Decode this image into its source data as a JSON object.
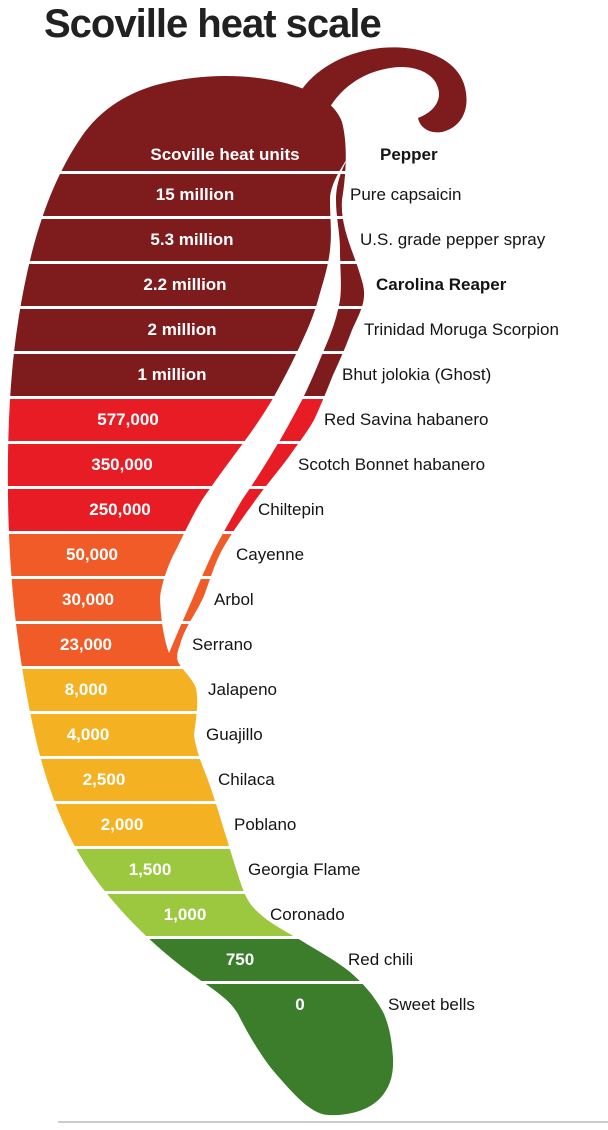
{
  "title": "Scoville heat scale",
  "header": {
    "shu_label": "Scoville heat units",
    "pepper_label": "Pepper"
  },
  "colors": {
    "maroon": "#7d1b1d",
    "red": "#e81c24",
    "orange": "#f15b27",
    "amber": "#f4b223",
    "yellow_green": "#9bc83e",
    "green": "#3b7d2a",
    "band_text": "#ffffff",
    "label_text": "#141414",
    "title_text": "#212121"
  },
  "rows": [
    {
      "shu": "15 million",
      "pepper": "Pure capsaicin",
      "color": "#7d1b1d",
      "emphasis": false
    },
    {
      "shu": "5.3 million",
      "pepper": "U.S. grade pepper spray",
      "color": "#7d1b1d",
      "emphasis": false
    },
    {
      "shu": "2.2 million",
      "pepper": "Carolina Reaper",
      "color": "#7d1b1d",
      "emphasis": true
    },
    {
      "shu": "2 million",
      "pepper": "Trinidad Moruga Scorpion",
      "color": "#7d1b1d",
      "emphasis": false
    },
    {
      "shu": "1 million",
      "pepper": "Bhut jolokia (Ghost)",
      "color": "#7d1b1d",
      "emphasis": false
    },
    {
      "shu": "577,000",
      "pepper": "Red Savina habanero",
      "color": "#e81c24",
      "emphasis": false
    },
    {
      "shu": "350,000",
      "pepper": "Scotch Bonnet habanero",
      "color": "#e81c24",
      "emphasis": false
    },
    {
      "shu": "250,000",
      "pepper": "Chiltepin",
      "color": "#e81c24",
      "emphasis": false
    },
    {
      "shu": "50,000",
      "pepper": "Cayenne",
      "color": "#f15b27",
      "emphasis": false
    },
    {
      "shu": "30,000",
      "pepper": "Arbol",
      "color": "#f15b27",
      "emphasis": false
    },
    {
      "shu": "23,000",
      "pepper": "Serrano",
      "color": "#f15b27",
      "emphasis": false
    },
    {
      "shu": "8,000",
      "pepper": "Jalapeno",
      "color": "#f4b223",
      "emphasis": false
    },
    {
      "shu": "4,000",
      "pepper": "Guajillo",
      "color": "#f4b223",
      "emphasis": false
    },
    {
      "shu": "2,500",
      "pepper": "Chilaca",
      "color": "#f4b223",
      "emphasis": false
    },
    {
      "shu": "2,000",
      "pepper": "Poblano",
      "color": "#f4b223",
      "emphasis": false
    },
    {
      "shu": "1,500",
      "pepper": "Georgia Flame",
      "color": "#9bc83e",
      "emphasis": false
    },
    {
      "shu": "1,000",
      "pepper": "Coronado",
      "color": "#9bc83e",
      "emphasis": false
    },
    {
      "shu": "750",
      "pepper": "Red chili",
      "color": "#3b7d2a",
      "emphasis": false
    },
    {
      "shu": "0",
      "pepper": "Sweet bells",
      "color": "#3b7d2a",
      "emphasis": false
    }
  ],
  "chart_data": {
    "type": "table",
    "title": "Scoville heat scale",
    "columns": [
      "Scoville heat units",
      "Pepper"
    ],
    "rows": [
      [
        "15 million",
        "Pure capsaicin"
      ],
      [
        "5.3 million",
        "U.S. grade pepper spray"
      ],
      [
        "2.2 million",
        "Carolina Reaper"
      ],
      [
        "2 million",
        "Trinidad Moruga Scorpion"
      ],
      [
        "1 million",
        "Bhut jolokia (Ghost)"
      ],
      [
        "577,000",
        "Red Savina habanero"
      ],
      [
        "350,000",
        "Scotch Bonnet habanero"
      ],
      [
        "250,000",
        "Chiltepin"
      ],
      [
        "50,000",
        "Cayenne"
      ],
      [
        "30,000",
        "Arbol"
      ],
      [
        "23,000",
        "Serrano"
      ],
      [
        "8,000",
        "Jalapeno"
      ],
      [
        "4,000",
        "Guajillo"
      ],
      [
        "2,500",
        "Chilaca"
      ],
      [
        "2,000",
        "Poblano"
      ],
      [
        "1,500",
        "Georgia Flame"
      ],
      [
        "1,000",
        "Coronado"
      ],
      [
        "750",
        "Red chili"
      ],
      [
        "0",
        "Sweet bells"
      ]
    ],
    "numeric_shu_values": [
      15000000,
      5300000,
      2200000,
      2000000,
      1000000,
      577000,
      350000,
      250000,
      50000,
      30000,
      23000,
      8000,
      4000,
      2500,
      2000,
      1500,
      1000,
      750,
      0
    ],
    "layout_hint": "vertical ranked scale drawn inside a chili-pepper silhouette, hottest at top (dark red) to mildest at bottom (green)"
  }
}
